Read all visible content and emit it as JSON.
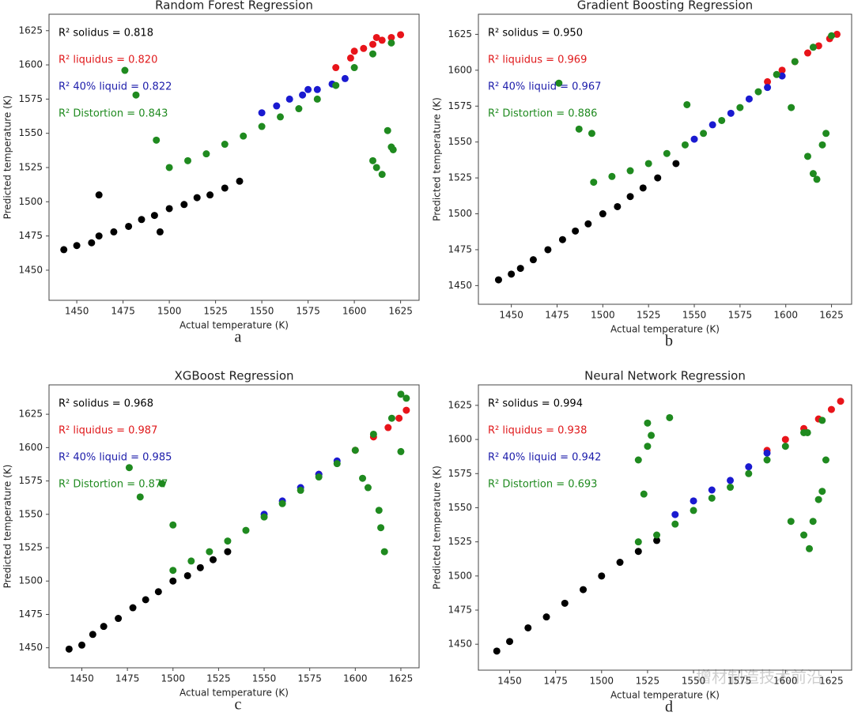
{
  "chart_data": [
    {
      "type": "scatter",
      "title": "Random Forest Regression",
      "xlabel": "Actual temperature (K)",
      "ylabel": "Predicted temperature (K)",
      "panel_label": "a",
      "xlim": [
        1435,
        1635
      ],
      "ylim": [
        1428,
        1637
      ],
      "xticks": [
        1450,
        1475,
        1500,
        1525,
        1550,
        1575,
        1600,
        1625
      ],
      "yticks": [
        1450,
        1475,
        1500,
        1525,
        1550,
        1575,
        1600,
        1625
      ],
      "annotations": [
        {
          "text": "R² solidus = 0.818",
          "color": "#000000"
        },
        {
          "text": "R² liquidus = 0.820",
          "color": "#e0191b"
        },
        {
          "text": "R² 40% liquid = 0.822",
          "color": "#1c1caa"
        },
        {
          "text": "R² Distortion = 0.843",
          "color": "#1f8a1f"
        }
      ],
      "series": [
        {
          "color": "#000000",
          "x": [
            1443,
            1450,
            1458,
            1462,
            1470,
            1478,
            1485,
            1492,
            1500,
            1508,
            1515,
            1522,
            1530,
            1538,
            1462,
            1495
          ],
          "values": [
            1465,
            1468,
            1470,
            1475,
            1478,
            1482,
            1487,
            1490,
            1495,
            1498,
            1503,
            1505,
            1510,
            1515,
            1505,
            1478
          ]
        },
        {
          "color": "#e8141a",
          "x": [
            1590,
            1598,
            1605,
            1610,
            1615,
            1620,
            1625,
            1600,
            1612
          ],
          "values": [
            1598,
            1605,
            1612,
            1615,
            1618,
            1620,
            1622,
            1610,
            1620
          ]
        },
        {
          "color": "#1a1ad0",
          "x": [
            1550,
            1558,
            1565,
            1572,
            1580,
            1588,
            1595,
            1575
          ],
          "values": [
            1565,
            1570,
            1575,
            1578,
            1582,
            1586,
            1590,
            1582
          ]
        },
        {
          "color": "#1f8a1f",
          "x": [
            1500,
            1510,
            1520,
            1530,
            1540,
            1550,
            1560,
            1570,
            1580,
            1590,
            1600,
            1610,
            1620,
            1476,
            1482,
            1493,
            1610,
            1615,
            1620,
            1618,
            1612,
            1621
          ],
          "values": [
            1525,
            1530,
            1535,
            1542,
            1548,
            1555,
            1562,
            1568,
            1575,
            1585,
            1598,
            1608,
            1616,
            1596,
            1578,
            1545,
            1530,
            1520,
            1540,
            1552,
            1525,
            1538
          ]
        }
      ]
    },
    {
      "type": "scatter",
      "title": "Gradient Boosting Regression",
      "xlabel": "Actual temperature (K)",
      "ylabel": "Predicted temperature (K)",
      "panel_label": "b",
      "xlim": [
        1432,
        1636
      ],
      "ylim": [
        1437,
        1639
      ],
      "xticks": [
        1450,
        1475,
        1500,
        1525,
        1550,
        1575,
        1600,
        1625
      ],
      "yticks": [
        1450,
        1475,
        1500,
        1525,
        1550,
        1575,
        1600,
        1625
      ],
      "annotations": [
        {
          "text": "R² solidus = 0.950",
          "color": "#000000"
        },
        {
          "text": "R² liquidus = 0.969",
          "color": "#e0191b"
        },
        {
          "text": "R² 40% liquid = 0.967",
          "color": "#1c1caa"
        },
        {
          "text": "R² Distortion = 0.886",
          "color": "#1f8a1f"
        }
      ],
      "series": [
        {
          "color": "#000000",
          "x": [
            1443,
            1450,
            1455,
            1462,
            1470,
            1478,
            1485,
            1492,
            1500,
            1508,
            1515,
            1522,
            1530,
            1540
          ],
          "values": [
            1454,
            1458,
            1462,
            1468,
            1475,
            1482,
            1488,
            1493,
            1500,
            1505,
            1512,
            1518,
            1525,
            1535
          ]
        },
        {
          "color": "#e8141a",
          "x": [
            1590,
            1598,
            1605,
            1612,
            1618,
            1624,
            1628
          ],
          "values": [
            1592,
            1600,
            1606,
            1612,
            1617,
            1622,
            1625
          ]
        },
        {
          "color": "#1a1ad0",
          "x": [
            1550,
            1560,
            1570,
            1580,
            1590,
            1598
          ],
          "values": [
            1552,
            1562,
            1570,
            1580,
            1588,
            1596
          ]
        },
        {
          "color": "#1f8a1f",
          "x": [
            1495,
            1505,
            1515,
            1525,
            1535,
            1545,
            1555,
            1565,
            1575,
            1585,
            1595,
            1605,
            1615,
            1625,
            1476,
            1487,
            1494,
            1546,
            1603,
            1612,
            1615,
            1620,
            1622,
            1617
          ],
          "values": [
            1522,
            1526,
            1530,
            1535,
            1542,
            1548,
            1556,
            1565,
            1574,
            1585,
            1597,
            1606,
            1616,
            1624,
            1591,
            1559,
            1556,
            1576,
            1574,
            1540,
            1528,
            1548,
            1556,
            1524
          ]
        }
      ]
    },
    {
      "type": "scatter",
      "title": "XGBoost Regression",
      "xlabel": "Actual temperature (K)",
      "ylabel": "Predicted temperature (K)",
      "panel_label": "c",
      "xlim": [
        1432,
        1635
      ],
      "ylim": [
        1435,
        1647
      ],
      "xticks": [
        1450,
        1475,
        1500,
        1525,
        1550,
        1575,
        1600,
        1625
      ],
      "yticks": [
        1450,
        1475,
        1500,
        1525,
        1550,
        1575,
        1600,
        1625
      ],
      "annotations": [
        {
          "text": "R² solidus = 0.968",
          "color": "#000000"
        },
        {
          "text": "R² liquidus = 0.987",
          "color": "#e0191b"
        },
        {
          "text": "R² 40% liquid = 0.985",
          "color": "#1c1caa"
        },
        {
          "text": "R² Distortion = 0.877",
          "color": "#1f8a1f"
        }
      ],
      "series": [
        {
          "color": "#000000",
          "x": [
            1443,
            1450,
            1456,
            1462,
            1470,
            1478,
            1485,
            1492,
            1500,
            1508,
            1515,
            1522,
            1530
          ],
          "values": [
            1449,
            1452,
            1460,
            1466,
            1472,
            1480,
            1486,
            1492,
            1500,
            1504,
            1510,
            1516,
            1522
          ]
        },
        {
          "color": "#e8141a",
          "x": [
            1580,
            1600,
            1610,
            1618,
            1624,
            1628
          ],
          "values": [
            1580,
            1598,
            1608,
            1615,
            1622,
            1628
          ]
        },
        {
          "color": "#1a1ad0",
          "x": [
            1550,
            1560,
            1570,
            1580,
            1590
          ],
          "values": [
            1550,
            1560,
            1570,
            1580,
            1590
          ]
        },
        {
          "color": "#1f8a1f",
          "x": [
            1500,
            1510,
            1520,
            1530,
            1540,
            1550,
            1560,
            1570,
            1580,
            1590,
            1600,
            1610,
            1620,
            1625,
            1476,
            1482,
            1494,
            1500,
            1604,
            1607,
            1613,
            1614,
            1616,
            1625,
            1628
          ],
          "values": [
            1508,
            1515,
            1522,
            1530,
            1538,
            1548,
            1558,
            1568,
            1578,
            1588,
            1598,
            1610,
            1622,
            1640,
            1585,
            1563,
            1573,
            1542,
            1577,
            1570,
            1553,
            1540,
            1522,
            1597,
            1637
          ]
        }
      ]
    },
    {
      "type": "scatter",
      "title": "Neural Network Regression",
      "xlabel": "Actual temperature (K)",
      "ylabel": "Predicted temperature (K)",
      "panel_label": "d",
      "xlim": [
        1433,
        1636
      ],
      "ylim": [
        1431,
        1640
      ],
      "xticks": [
        1450,
        1475,
        1500,
        1525,
        1550,
        1575,
        1600,
        1625
      ],
      "yticks": [
        1450,
        1475,
        1500,
        1525,
        1550,
        1575,
        1600,
        1625
      ],
      "annotations": [
        {
          "text": "R² solidus = 0.994",
          "color": "#000000"
        },
        {
          "text": "R² liquidus = 0.938",
          "color": "#e0191b"
        },
        {
          "text": "R² 40% liquid = 0.942",
          "color": "#1c1caa"
        },
        {
          "text": "R² Distortion = 0.693",
          "color": "#1f8a1f"
        }
      ],
      "series": [
        {
          "color": "#000000",
          "x": [
            1443,
            1450,
            1460,
            1470,
            1480,
            1490,
            1500,
            1510,
            1520,
            1530
          ],
          "values": [
            1445,
            1452,
            1462,
            1470,
            1480,
            1490,
            1500,
            1510,
            1518,
            1526
          ]
        },
        {
          "color": "#e8141a",
          "x": [
            1590,
            1600,
            1610,
            1618,
            1625,
            1630
          ],
          "values": [
            1592,
            1600,
            1608,
            1615,
            1622,
            1628
          ]
        },
        {
          "color": "#1a1ad0",
          "x": [
            1540,
            1550,
            1560,
            1570,
            1580,
            1590
          ],
          "values": [
            1545,
            1555,
            1563,
            1570,
            1580,
            1590
          ]
        },
        {
          "color": "#1f8a1f",
          "x": [
            1520,
            1530,
            1540,
            1550,
            1560,
            1570,
            1580,
            1590,
            1600,
            1610,
            1620,
            1525,
            1527,
            1520,
            1537,
            1525,
            1523,
            1610,
            1613,
            1615,
            1618,
            1620,
            1622,
            1603,
            1612
          ],
          "values": [
            1525,
            1530,
            1538,
            1548,
            1557,
            1565,
            1575,
            1585,
            1595,
            1605,
            1614,
            1612,
            1603,
            1585,
            1616,
            1595,
            1560,
            1530,
            1520,
            1540,
            1556,
            1562,
            1585,
            1540,
            1605
          ]
        }
      ]
    }
  ],
  "watermark": "增材制造技术前沿"
}
